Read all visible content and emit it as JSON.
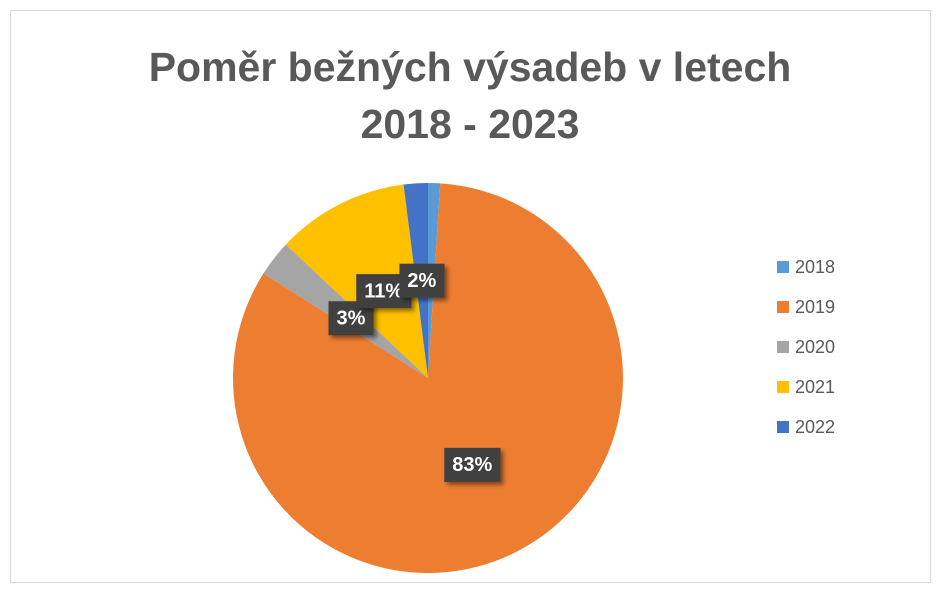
{
  "chart_data": {
    "type": "pie",
    "title": "Poměr bežných výsadeb v letech 2018 - 2023",
    "categories": [
      "2018",
      "2019",
      "2020",
      "2021",
      "2022"
    ],
    "values": [
      1,
      83,
      3,
      11,
      2
    ],
    "value_labels": [
      null,
      "83%",
      "3%",
      "11%",
      "2%"
    ],
    "colors": [
      "#5b9bd5",
      "#ed7d31",
      "#a5a5a5",
      "#ffc000",
      "#4472c4"
    ],
    "legend": "right"
  }
}
